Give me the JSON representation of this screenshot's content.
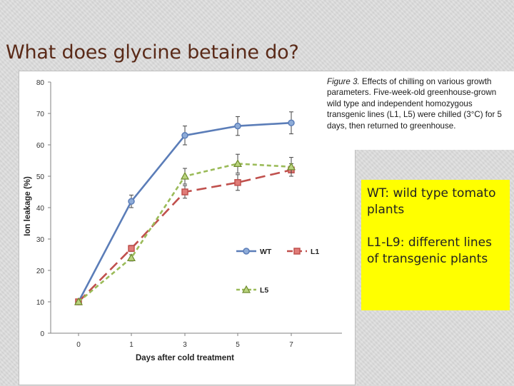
{
  "slide": {
    "title": "What does glycine betaine do?"
  },
  "caption": {
    "figure_label": "Figure 3.",
    "text": " Effects of chilling on various growth parameters. Five-week-old greenhouse-grown wild type and independent homozygous transgenic lines (L1, L5) were chilled (3°C) for 5 days, then returned to greenhouse."
  },
  "note": {
    "line1": "WT: wild type tomato plants",
    "line2": "L1-L9: different lines of transgenic plants"
  },
  "chart_data": {
    "type": "line",
    "title": "",
    "xlabel": "Days after cold treatment",
    "ylabel": "Ion leakage (%)",
    "categories": [
      "0",
      "1",
      "3",
      "5",
      "7"
    ],
    "ylim": [
      0,
      80
    ],
    "yticks": [
      0,
      10,
      20,
      30,
      40,
      50,
      60,
      70,
      80
    ],
    "grid": false,
    "legend": "bottom-right",
    "series": [
      {
        "name": "WT",
        "values": [
          10,
          42,
          63,
          66,
          67
        ],
        "errors": [
          0,
          2,
          3,
          3,
          3.5
        ],
        "color": "#5b7db8",
        "marker": "circle",
        "dash": "solid"
      },
      {
        "name": "L1",
        "values": [
          10,
          27,
          45,
          48,
          52
        ],
        "errors": [
          0,
          1,
          2,
          2.5,
          2
        ],
        "color": "#c0504d",
        "marker": "square",
        "dash": "long-dash"
      },
      {
        "name": "L5",
        "values": [
          10,
          24,
          50,
          54,
          53
        ],
        "errors": [
          0,
          1,
          2.5,
          3,
          3
        ],
        "color": "#9bbb59",
        "marker": "triangle",
        "dash": "dash"
      }
    ]
  }
}
